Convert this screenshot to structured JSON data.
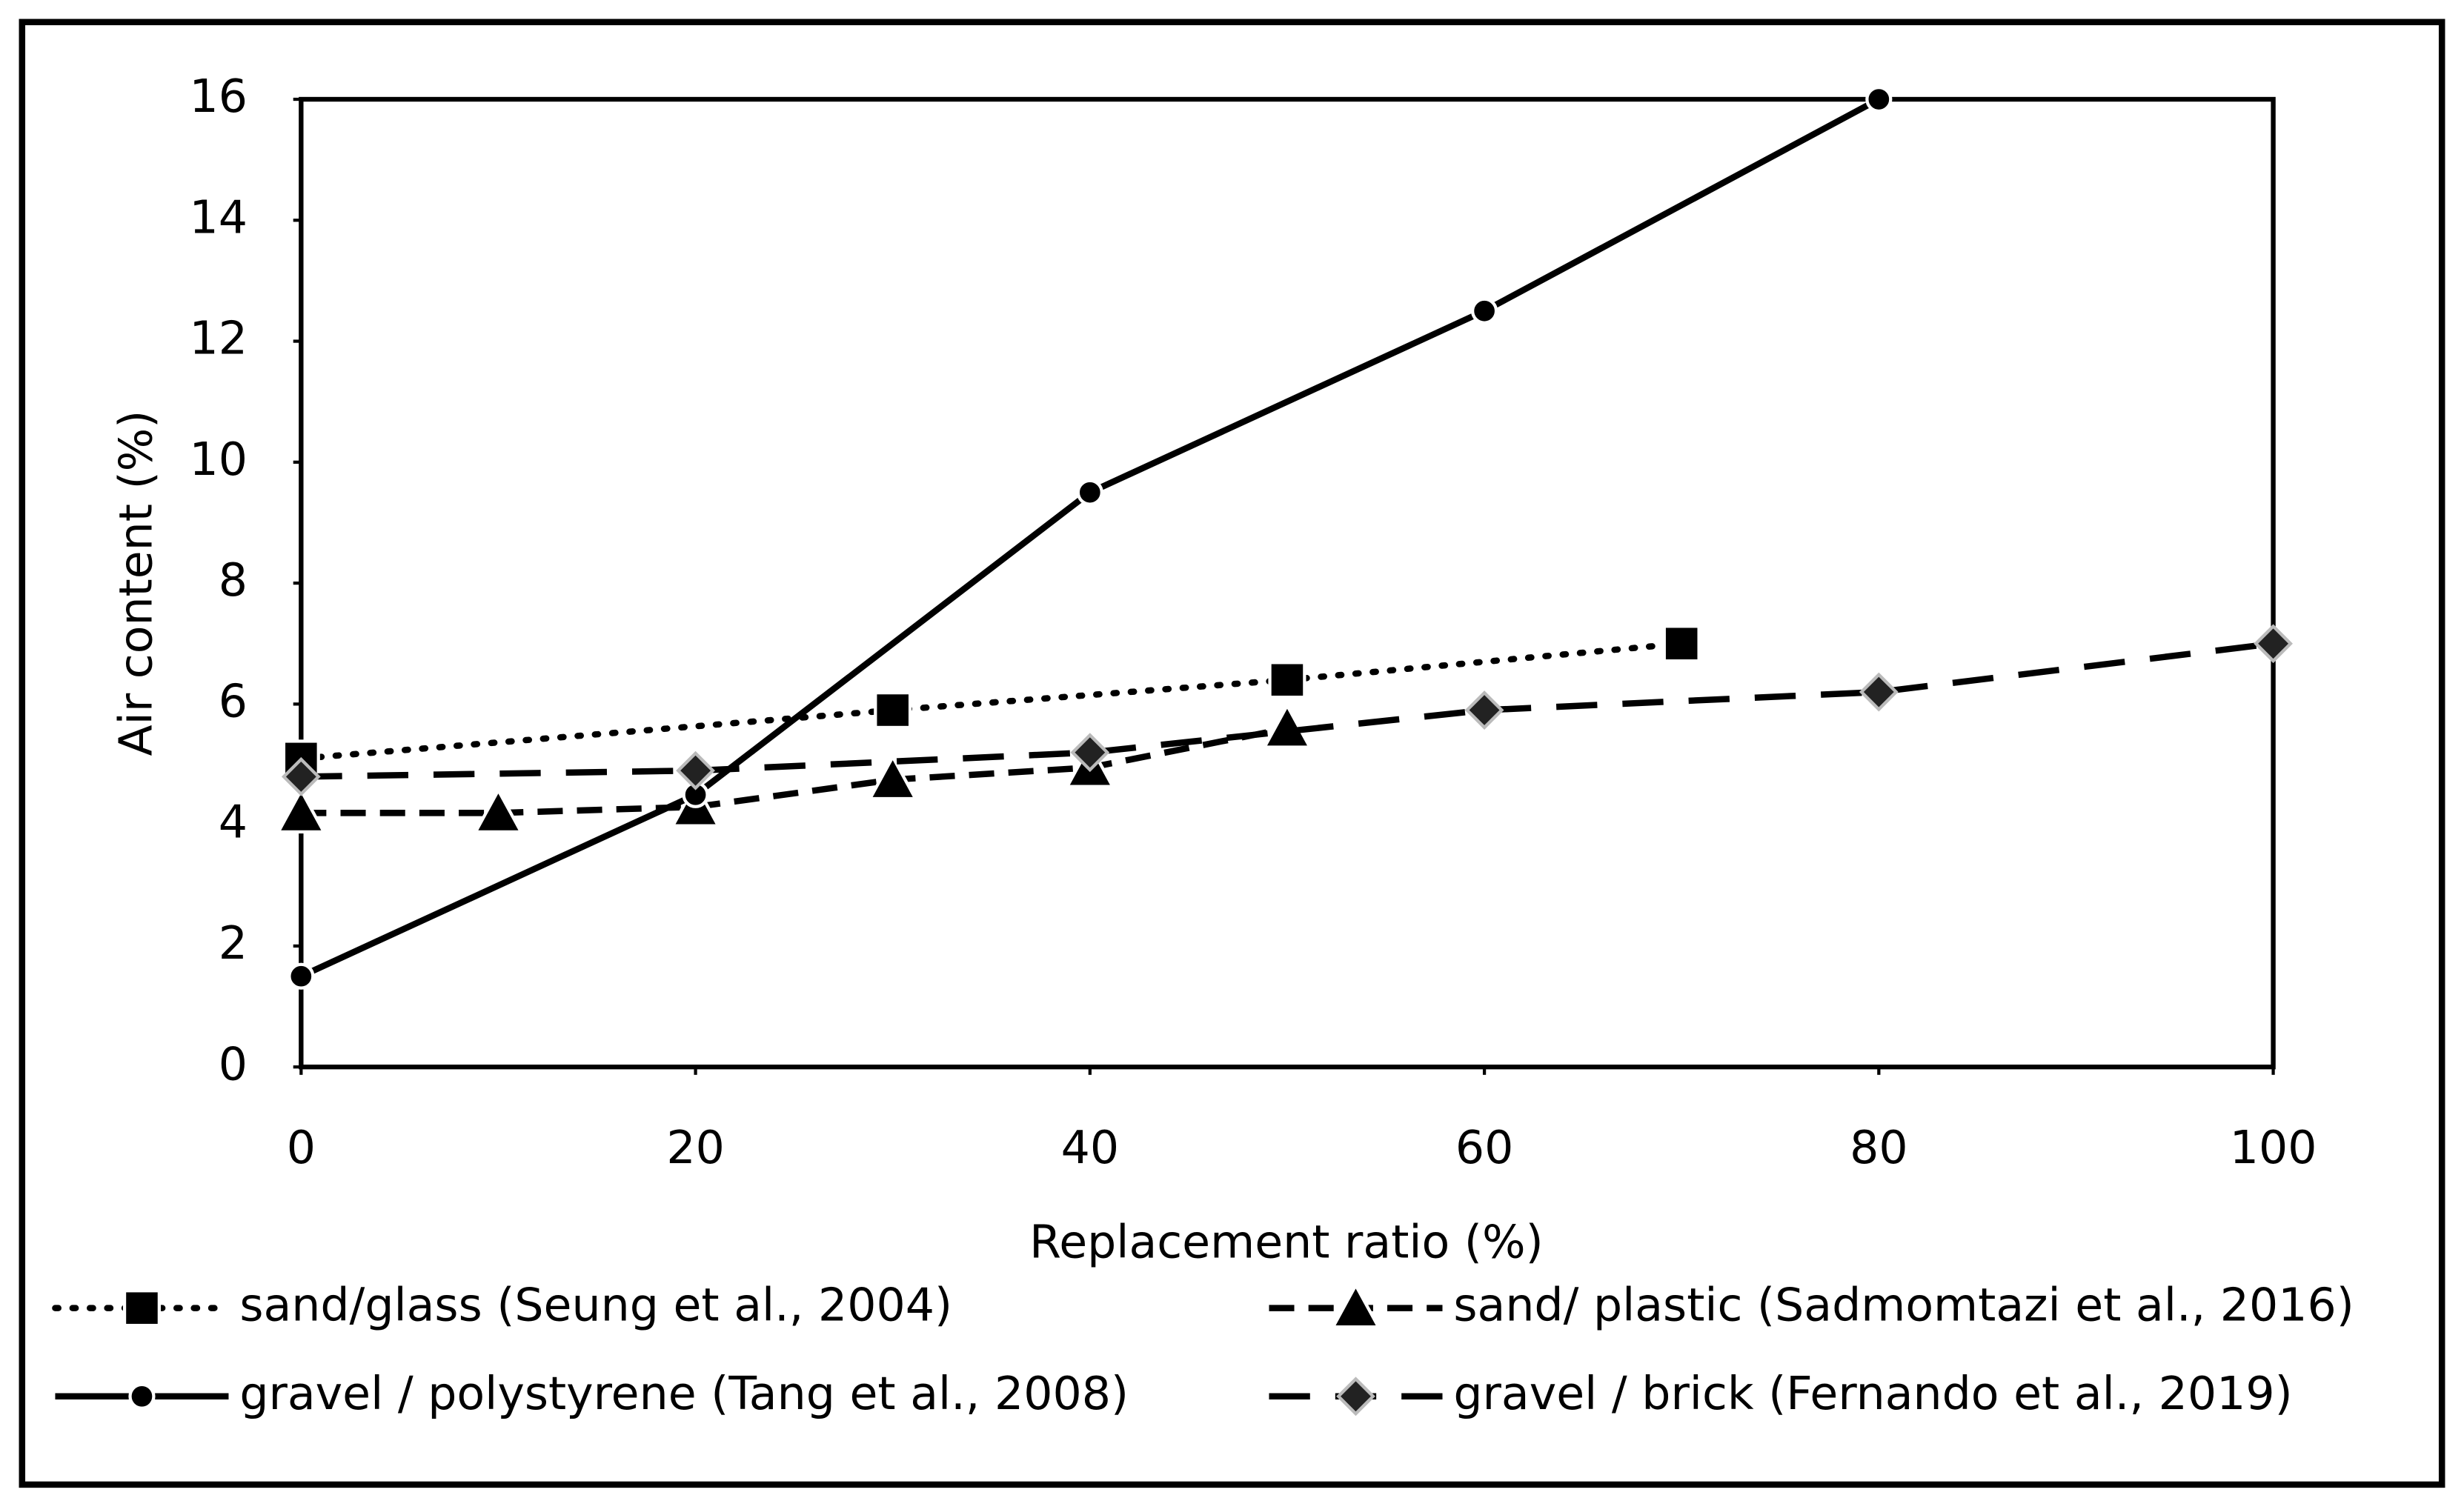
{
  "chart_data": {
    "type": "line",
    "x_label": "Replacement ratio (%)",
    "y_label": "Air content (%)",
    "xlim": [
      0,
      100
    ],
    "xticks": [
      0,
      20,
      40,
      60,
      80,
      100
    ],
    "ylim": [
      0,
      16
    ],
    "yticks": [
      0,
      2,
      4,
      6,
      8,
      10,
      12,
      14,
      16
    ],
    "grid": false,
    "legend": "bottom",
    "series": [
      {
        "name": "sand/glass (Seung et al., 2004)",
        "color": "#000000",
        "dash": "dotted",
        "marker": "square",
        "marker_fill": "#000000",
        "x": [
          0,
          30,
          50,
          70
        ],
        "values": [
          5.1,
          5.9,
          6.4,
          7.0
        ]
      },
      {
        "name": "sand/ plastic (Sadmomtazi et al., 2016)",
        "color": "#000000",
        "dash": "dashed",
        "marker": "triangle",
        "marker_fill": "#000000",
        "x": [
          0,
          10,
          20,
          30,
          40,
          50
        ],
        "values": [
          4.2,
          4.2,
          4.3,
          4.75,
          4.95,
          5.6
        ]
      },
      {
        "name": "gravel / polystyrene (Tang et al., 2008)",
        "color": "#000000",
        "dash": "solid",
        "marker": "circle",
        "marker_fill": "#000000",
        "x": [
          0,
          20,
          40,
          60,
          80
        ],
        "values": [
          1.5,
          4.5,
          9.5,
          12.5,
          16
        ]
      },
      {
        "name": "gravel / brick (Fernando et al., 2019)",
        "color": "#000000",
        "dash": "longdash",
        "marker": "diamond",
        "marker_fill": "#222222",
        "x": [
          0,
          20,
          40,
          60,
          80,
          100
        ],
        "values": [
          4.8,
          4.9,
          5.2,
          5.9,
          6.2,
          7.0
        ]
      }
    ]
  }
}
